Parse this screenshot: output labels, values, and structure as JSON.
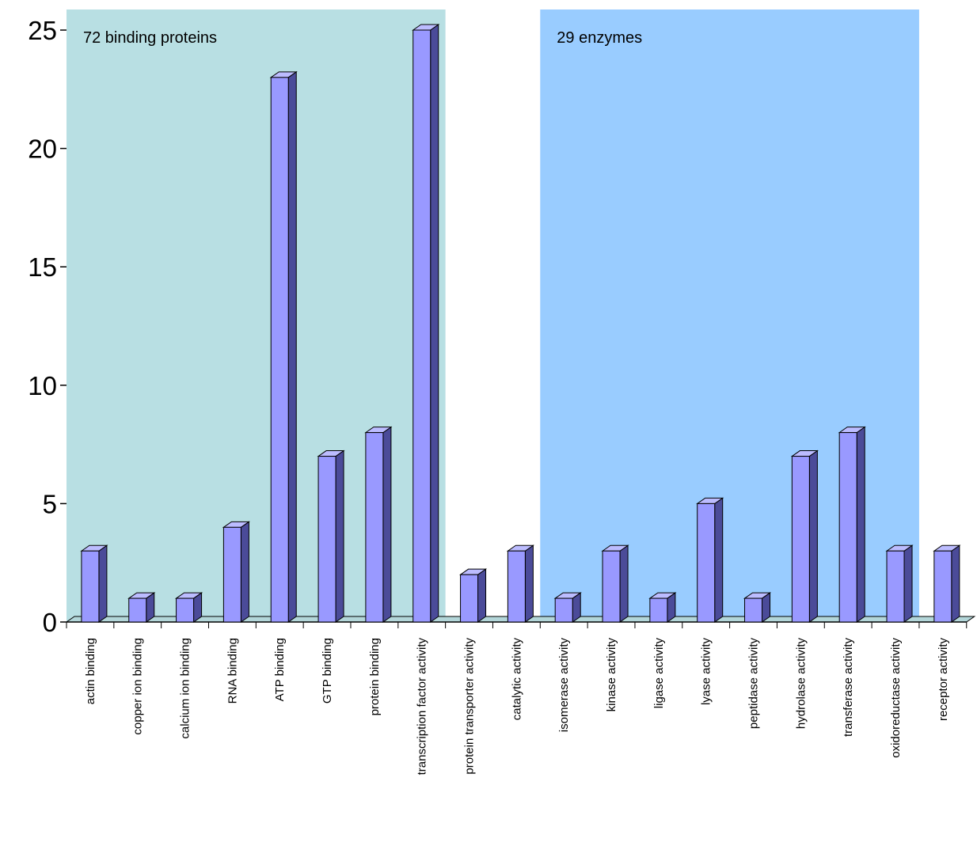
{
  "chart_data": {
    "type": "bar",
    "title": "",
    "xlabel": "",
    "ylabel": "",
    "ylim": [
      0,
      25
    ],
    "yticks": [
      0,
      5,
      10,
      15,
      20,
      25
    ],
    "grid": false,
    "legend": "none",
    "categories": [
      "actin binding",
      "copper ion binding",
      "calcium ion binding",
      "RNA binding",
      "ATP binding",
      "GTP binding",
      "protein binding",
      "transcription factor activity",
      "protein transporter activity",
      "catalytic activity",
      "isomerase activity",
      "kinase activity",
      "ligase activity",
      "lyase activity",
      "peptidase activity",
      "hydrolase activity",
      "transferase activity",
      "oxidoreductase activity",
      "receptor activity"
    ],
    "values": [
      3,
      1,
      1,
      4,
      23,
      7,
      8,
      25,
      2,
      3,
      1,
      3,
      1,
      5,
      1,
      7,
      8,
      3,
      3
    ],
    "bands": [
      {
        "label": "72 binding proteins",
        "from": 0,
        "to": 7,
        "color": "#b8dfe3"
      },
      {
        "label": "29 enzymes",
        "from": 10,
        "to": 17,
        "color": "#99ccff"
      }
    ],
    "colors": {
      "bar_front": "#9999ff",
      "bar_side": "#4b4b99",
      "bar_top": "#bcbcff",
      "floor": "#b3d6d9"
    }
  }
}
